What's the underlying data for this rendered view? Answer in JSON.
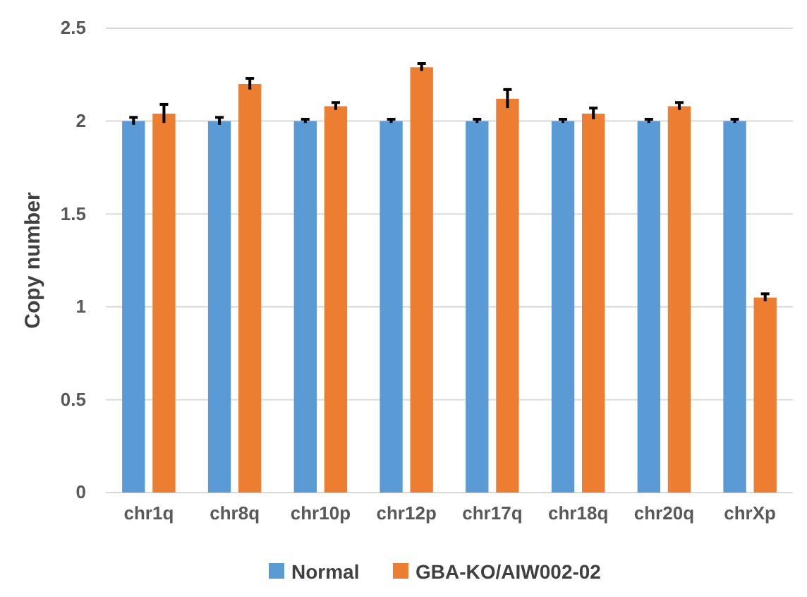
{
  "chart_data": {
    "type": "bar",
    "ylabel": "Copy number",
    "categories": [
      "chr1q",
      "chr8q",
      "chr10p",
      "chr12p",
      "chr17q",
      "chr18q",
      "chr20q",
      "chrXp"
    ],
    "series": [
      {
        "name": "Normal",
        "color": "#5b9bd5",
        "values": [
          2,
          2,
          2,
          2,
          2,
          2,
          2,
          2
        ],
        "errors": [
          0.02,
          0.02,
          0.01,
          0.01,
          0.01,
          0.01,
          0.01,
          0.01
        ]
      },
      {
        "name": "GBA-KO/AIW002-02",
        "color": "#ed7d31",
        "values": [
          2.04,
          2.2,
          2.08,
          2.29,
          2.12,
          2.04,
          2.08,
          1.05
        ],
        "errors": [
          0.05,
          0.03,
          0.02,
          0.02,
          0.05,
          0.03,
          0.02,
          0.02
        ]
      }
    ],
    "ylim": [
      0,
      2.5
    ],
    "yticks": [
      0,
      0.5,
      1,
      1.5,
      2,
      2.5
    ],
    "grid": "y",
    "legend": "bottom"
  }
}
